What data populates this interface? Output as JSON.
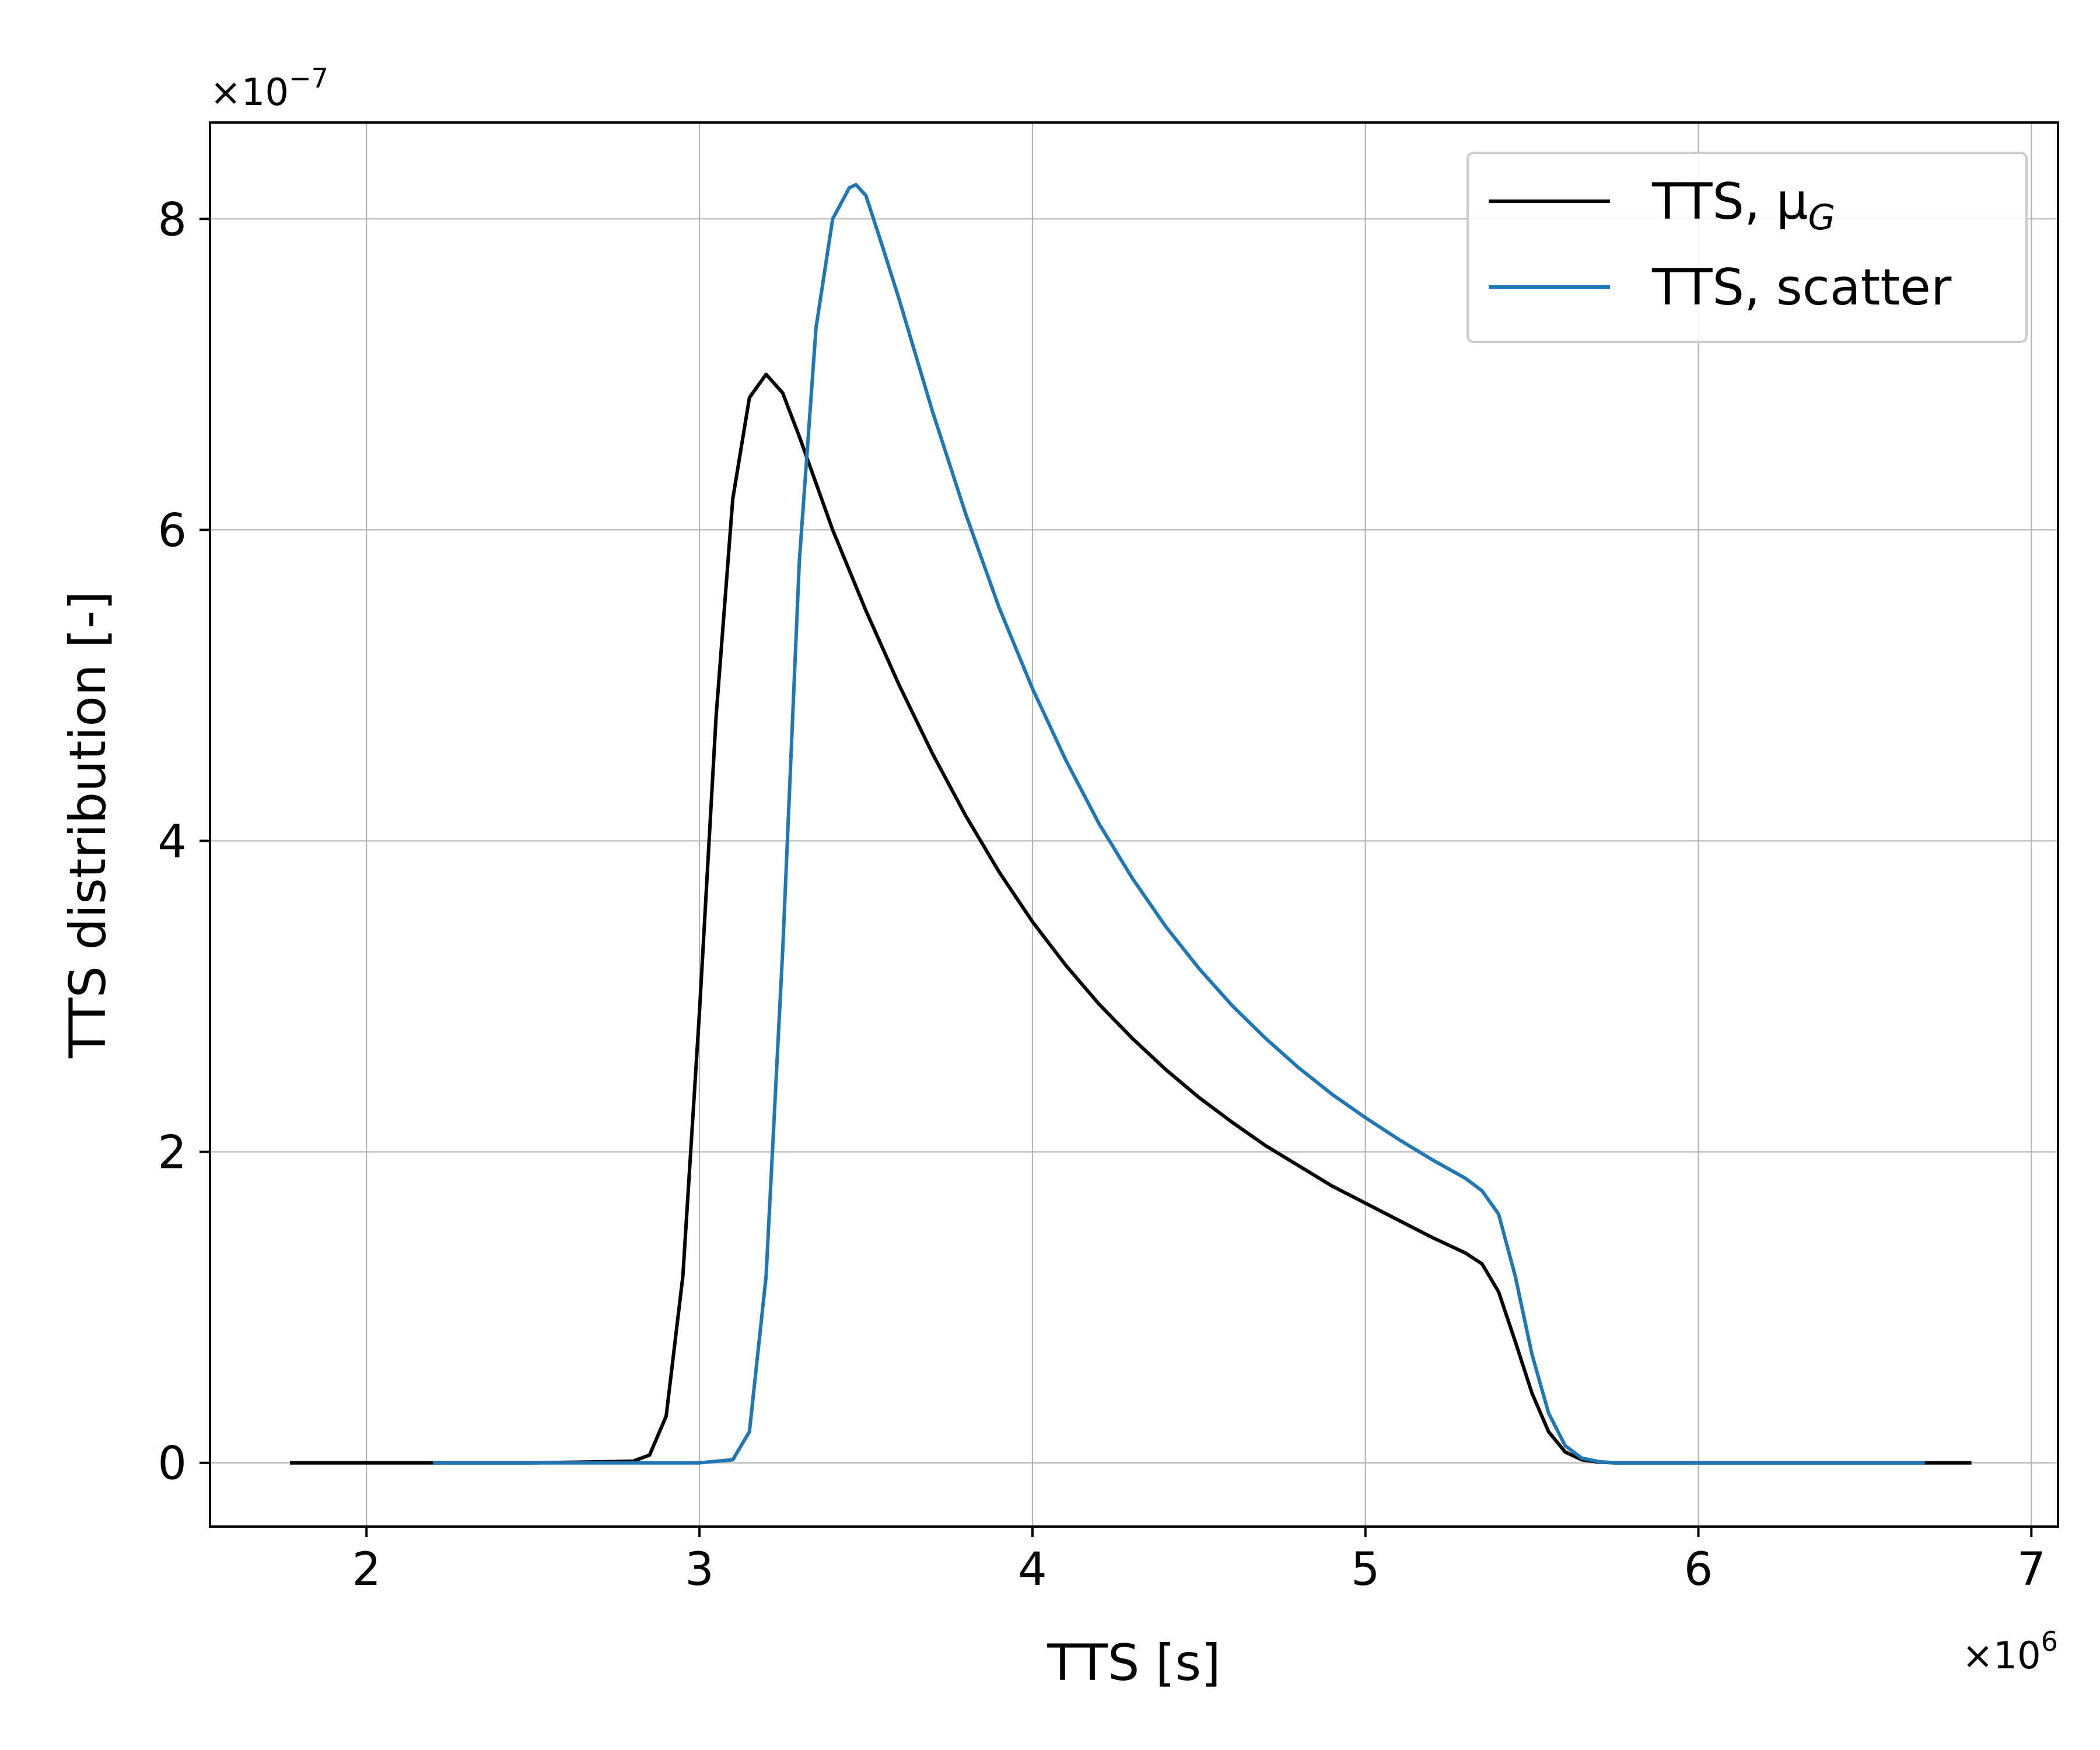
{
  "chart_data": {
    "type": "line",
    "title": "",
    "xlabel": "TTS [s]",
    "ylabel": "TTS distribution [-]",
    "x_scale_label": "×10",
    "x_scale_exp": "6",
    "y_scale_label": "×10",
    "y_scale_exp": "−7",
    "xlim": [
      1.53,
      7.08
    ],
    "ylim": [
      -0.41,
      8.62
    ],
    "x_ticks": [
      2,
      3,
      4,
      5,
      6,
      7
    ],
    "y_ticks": [
      0,
      2,
      4,
      6,
      8
    ],
    "x_tick_labels": [
      "2",
      "3",
      "4",
      "5",
      "6",
      "7"
    ],
    "y_tick_labels": [
      "0",
      "2",
      "4",
      "6",
      "8"
    ],
    "grid": true,
    "legend_position": "top-right",
    "series": [
      {
        "name": "TTS, μ",
        "name_subscript": "G",
        "color": "#000000",
        "x": [
          1.77,
          2.0,
          2.5,
          2.8,
          2.85,
          2.9,
          2.95,
          3.0,
          3.05,
          3.1,
          3.15,
          3.2,
          3.25,
          3.3,
          3.35,
          3.4,
          3.5,
          3.6,
          3.7,
          3.8,
          3.9,
          4.0,
          4.1,
          4.2,
          4.3,
          4.4,
          4.5,
          4.6,
          4.7,
          4.8,
          4.9,
          5.0,
          5.1,
          5.2,
          5.3,
          5.35,
          5.4,
          5.45,
          5.5,
          5.55,
          5.6,
          5.65,
          5.7,
          5.75,
          5.8,
          6.0,
          6.5,
          6.82
        ],
        "y": [
          0.0,
          0.0,
          0.0,
          0.01,
          0.05,
          0.3,
          1.2,
          2.9,
          4.8,
          6.2,
          6.85,
          7.0,
          6.88,
          6.6,
          6.3,
          6.0,
          5.48,
          5.0,
          4.56,
          4.16,
          3.8,
          3.48,
          3.2,
          2.95,
          2.73,
          2.53,
          2.35,
          2.19,
          2.04,
          1.91,
          1.78,
          1.67,
          1.56,
          1.45,
          1.35,
          1.28,
          1.1,
          0.78,
          0.45,
          0.2,
          0.07,
          0.02,
          0.005,
          0.0,
          0.0,
          0.0,
          0.0,
          0.0
        ]
      },
      {
        "name": "TTS, scatter",
        "color": "#1f77b4",
        "x": [
          2.2,
          2.5,
          3.0,
          3.1,
          3.15,
          3.2,
          3.25,
          3.3,
          3.35,
          3.4,
          3.45,
          3.47,
          3.5,
          3.55,
          3.6,
          3.7,
          3.8,
          3.9,
          4.0,
          4.1,
          4.2,
          4.3,
          4.4,
          4.5,
          4.6,
          4.7,
          4.8,
          4.9,
          5.0,
          5.1,
          5.2,
          5.3,
          5.35,
          5.4,
          5.45,
          5.5,
          5.55,
          5.6,
          5.65,
          5.7,
          5.75,
          5.8,
          6.0,
          6.5,
          6.68
        ],
        "y": [
          0.0,
          0.0,
          0.0,
          0.02,
          0.2,
          1.2,
          3.3,
          5.8,
          7.3,
          8.0,
          8.2,
          8.22,
          8.15,
          7.82,
          7.48,
          6.76,
          6.1,
          5.5,
          4.98,
          4.52,
          4.11,
          3.76,
          3.45,
          3.18,
          2.94,
          2.73,
          2.54,
          2.37,
          2.22,
          2.08,
          1.95,
          1.83,
          1.75,
          1.6,
          1.2,
          0.7,
          0.32,
          0.11,
          0.03,
          0.008,
          0.0,
          0.0,
          0.0,
          0.0,
          0.0
        ]
      }
    ]
  }
}
